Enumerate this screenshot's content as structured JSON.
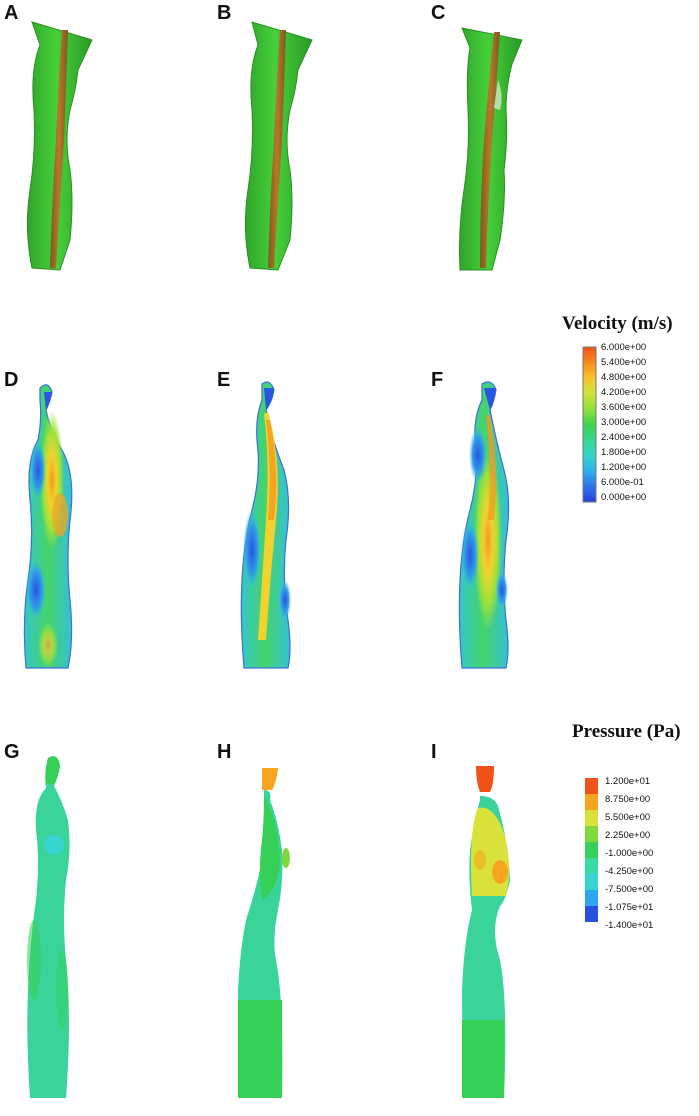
{
  "panels": {
    "a": "A",
    "b": "B",
    "c": "C",
    "d": "D",
    "e": "E",
    "f": "F",
    "g": "G",
    "h": "H",
    "i": "I"
  },
  "velocity_legend": {
    "title": "Velocity (m/s)",
    "ticks": [
      "6.000e+00",
      "5.400e+00",
      "4.800e+00",
      "4.200e+00",
      "3.600e+00",
      "3.000e+00",
      "2.400e+00",
      "1.800e+00",
      "1.200e+00",
      "6.000e-01",
      "0.000e+00"
    ],
    "colors": [
      "#f0521a",
      "#f88a1e",
      "#f6c52a",
      "#cfe23a",
      "#8fe23d",
      "#3ed24a",
      "#35d890",
      "#35d3c6",
      "#2fb0ee",
      "#2f72ea",
      "#2440dd"
    ]
  },
  "pressure_legend": {
    "title": "Pressure (Pa)",
    "ticks": [
      "1.200e+01",
      "8.750e+00",
      "5.500e+00",
      "2.250e+00",
      "-1.000e+00",
      "-4.250e+00",
      "-7.500e+00",
      "-1.075e+01",
      "-1.400e+01"
    ],
    "colors": [
      "#f0521a",
      "#f7a520",
      "#d8e23a",
      "#7fd83c",
      "#36cf57",
      "#38dba4",
      "#38d4d2",
      "#2ea6ef",
      "#2950e0"
    ]
  }
}
